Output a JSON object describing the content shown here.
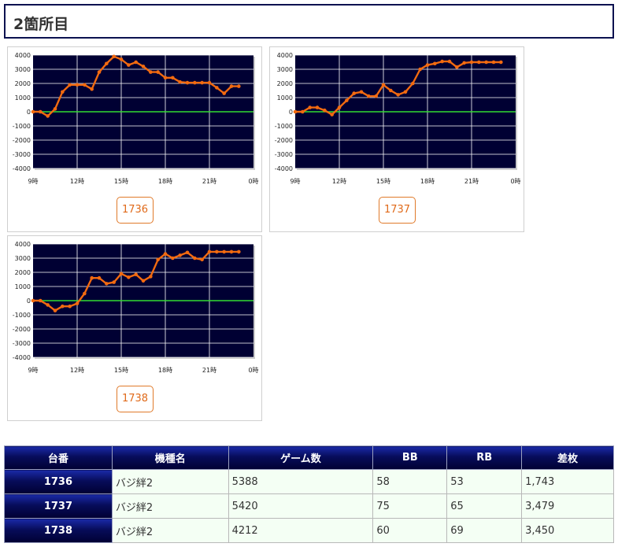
{
  "page": {
    "title": "2箇所目"
  },
  "colors": {
    "plot_bg": "#000033",
    "line": "#f26a10",
    "zero_line": "#33dd33",
    "grid": "#ffffff"
  },
  "chart_data": [
    {
      "type": "line",
      "label": "1736",
      "x_ticks": [
        "9時",
        "12時",
        "15時",
        "18時",
        "21時",
        "0時"
      ],
      "y_ticks": [
        "4000",
        "3000",
        "2000",
        "1000",
        "0",
        "-1000",
        "-2000",
        "-3000",
        "-4000"
      ],
      "ylim": [
        -4000,
        4000
      ],
      "xlim": [
        9,
        24
      ],
      "grid": true,
      "x": [
        9,
        9.5,
        10,
        10.5,
        11,
        11.5,
        12,
        12.5,
        13,
        13.5,
        14,
        14.5,
        15,
        15.5,
        16,
        16.5,
        17,
        17.5,
        18,
        18.5,
        19,
        19.5,
        20,
        20.5,
        21,
        21.5,
        22,
        22.5,
        23
      ],
      "y": [
        0,
        0,
        -300,
        200,
        1400,
        1900,
        1900,
        1900,
        1600,
        2800,
        3400,
        3900,
        3700,
        3300,
        3500,
        3200,
        2800,
        2800,
        2400,
        2400,
        2100,
        2050,
        2050,
        2050,
        2050,
        1700,
        1300,
        1800,
        1800
      ]
    },
    {
      "type": "line",
      "label": "1737",
      "x_ticks": [
        "9時",
        "12時",
        "15時",
        "18時",
        "21時",
        "0時"
      ],
      "y_ticks": [
        "4000",
        "3000",
        "2000",
        "1000",
        "0",
        "-1000",
        "-2000",
        "-3000",
        "-4000"
      ],
      "ylim": [
        -4000,
        4000
      ],
      "xlim": [
        9,
        24
      ],
      "grid": true,
      "x": [
        9,
        9.5,
        10,
        10.5,
        11,
        11.5,
        12,
        12.5,
        13,
        13.5,
        14,
        14.5,
        15,
        15.5,
        16,
        16.5,
        17,
        17.5,
        18,
        18.5,
        19,
        19.5,
        20,
        20.5,
        21,
        21.5,
        22,
        22.5,
        23
      ],
      "y": [
        0,
        0,
        300,
        300,
        100,
        -200,
        300,
        800,
        1300,
        1400,
        1100,
        1100,
        1900,
        1500,
        1200,
        1400,
        2000,
        3000,
        3300,
        3400,
        3550,
        3550,
        3150,
        3450,
        3500,
        3500,
        3500,
        3500,
        3500
      ]
    },
    {
      "type": "line",
      "label": "1738",
      "x_ticks": [
        "9時",
        "12時",
        "15時",
        "18時",
        "21時",
        "0時"
      ],
      "y_ticks": [
        "4000",
        "3000",
        "2000",
        "1000",
        "0",
        "-1000",
        "-2000",
        "-3000",
        "-4000"
      ],
      "ylim": [
        -4000,
        4000
      ],
      "xlim": [
        9,
        24
      ],
      "grid": true,
      "x": [
        9,
        9.5,
        10,
        10.5,
        11,
        11.5,
        12,
        12.5,
        13,
        13.5,
        14,
        14.5,
        15,
        15.5,
        16,
        16.5,
        17,
        17.5,
        18,
        18.5,
        19,
        19.5,
        20,
        20.5,
        21,
        21.5,
        22,
        22.5,
        23
      ],
      "y": [
        0,
        0,
        -300,
        -700,
        -400,
        -400,
        -200,
        500,
        1600,
        1600,
        1200,
        1300,
        1900,
        1650,
        1850,
        1400,
        1700,
        2900,
        3300,
        3000,
        3200,
        3400,
        3000,
        2900,
        3450,
        3450,
        3450,
        3450,
        3450
      ]
    }
  ],
  "table": {
    "headers": [
      "台番",
      "機種名",
      "ゲーム数",
      "BB",
      "RB",
      "差枚"
    ],
    "rows": [
      [
        "1736",
        "バジ絆2",
        "5388",
        "58",
        "53",
        "1,743"
      ],
      [
        "1737",
        "バジ絆2",
        "5420",
        "75",
        "65",
        "3,479"
      ],
      [
        "1738",
        "バジ絆2",
        "4212",
        "60",
        "69",
        "3,450"
      ]
    ]
  }
}
